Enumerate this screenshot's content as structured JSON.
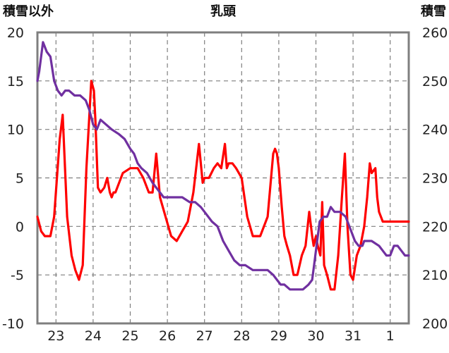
{
  "chart_data": {
    "type": "line",
    "title": "乳頭",
    "y_left_label": "積雪以外",
    "y_right_label": "積雪",
    "ylim_left": [
      -10,
      20
    ],
    "ylim_right": [
      200,
      260
    ],
    "x_ticks": [
      "23",
      "24",
      "25",
      "26",
      "27",
      "28",
      "29",
      "30",
      "31",
      "1"
    ],
    "x_tick_positions": [
      1,
      2,
      3,
      4,
      5,
      6,
      7,
      8,
      9,
      10
    ],
    "xlim": [
      0.5,
      10.5
    ],
    "y_ticks_left": [
      "20",
      "15",
      "10",
      "5",
      "0",
      "-5",
      "-10"
    ],
    "y_ticks_right": [
      "260",
      "250",
      "240",
      "230",
      "220",
      "210",
      "200"
    ],
    "grid": true,
    "series": [
      {
        "axis": "left",
        "color": "#ff0000",
        "x": [
          0.5,
          0.6,
          0.7,
          0.85,
          0.95,
          1.1,
          1.18,
          1.3,
          1.42,
          1.52,
          1.62,
          1.72,
          1.82,
          1.95,
          2.02,
          2.06,
          2.13,
          2.2,
          2.3,
          2.38,
          2.45,
          2.5,
          2.55,
          2.6,
          2.7,
          2.8,
          3.0,
          3.2,
          3.35,
          3.5,
          3.6,
          3.7,
          3.8,
          3.95,
          4.1,
          4.25,
          4.4,
          4.55,
          4.7,
          4.85,
          4.95,
          5.0,
          5.07,
          5.12,
          5.25,
          5.35,
          5.45,
          5.55,
          5.6,
          5.65,
          5.75,
          5.85,
          6.0,
          6.15,
          6.3,
          6.5,
          6.7,
          6.85,
          6.9,
          6.95,
          7.0,
          7.08,
          7.15,
          7.22,
          7.3,
          7.4,
          7.5,
          7.62,
          7.72,
          7.82,
          7.9,
          7.94,
          8.0,
          8.05,
          8.12,
          8.17,
          8.22,
          8.3,
          8.4,
          8.5,
          8.6,
          8.7,
          8.78,
          8.85,
          8.93,
          9.0,
          9.1,
          9.2,
          9.3,
          9.38,
          9.45,
          9.5,
          9.6,
          9.65,
          9.7,
          9.8,
          9.9,
          9.95,
          10.0,
          10.05,
          10.1,
          10.15,
          10.25,
          10.3,
          10.4,
          10.5
        ],
        "y": [
          1,
          -0.5,
          -1,
          -1,
          1,
          9,
          11.5,
          1,
          -3,
          -4.5,
          -5.5,
          -4,
          6,
          15,
          14,
          11,
          4,
          3.5,
          4,
          5,
          3.5,
          3,
          3.5,
          3.5,
          4.5,
          5.5,
          6,
          6,
          5,
          3.5,
          3.5,
          7.5,
          3,
          1,
          -1,
          -1.5,
          -0.5,
          0.5,
          3.5,
          8.5,
          4.5,
          5,
          5,
          5,
          6,
          6.5,
          6,
          8.5,
          6,
          6.5,
          6.5,
          6,
          5,
          1,
          -1,
          -1,
          1,
          7.5,
          8,
          7.5,
          6,
          2,
          -1,
          -2,
          -3,
          -5,
          -5,
          -3,
          -2,
          1.5,
          -1,
          -2,
          -1,
          -2,
          -3,
          2.5,
          -4,
          -5,
          -6.5,
          -6.5,
          -3,
          3,
          7.5,
          0,
          -5,
          -5.5,
          -3,
          -2,
          0,
          3,
          6.5,
          5.5,
          6,
          3,
          1.5,
          0.5,
          0.5,
          0.5,
          0.5,
          0.5,
          0.5,
          0.5,
          0.5,
          0.5,
          0.5,
          0.5
        ]
      },
      {
        "axis": "right",
        "color": "#7030a0",
        "x": [
          0.5,
          0.55,
          0.65,
          0.75,
          0.85,
          0.95,
          1.05,
          1.15,
          1.25,
          1.35,
          1.5,
          1.65,
          1.8,
          1.9,
          2.0,
          2.1,
          2.2,
          2.35,
          2.5,
          2.7,
          2.85,
          3.0,
          3.1,
          3.2,
          3.3,
          3.45,
          3.6,
          3.7,
          3.8,
          3.9,
          4.0,
          4.2,
          4.4,
          4.6,
          4.75,
          4.9,
          5.0,
          5.1,
          5.2,
          5.35,
          5.5,
          5.65,
          5.8,
          5.95,
          6.1,
          6.3,
          6.5,
          6.7,
          6.85,
          6.95,
          7.05,
          7.15,
          7.3,
          7.5,
          7.65,
          7.8,
          7.9,
          7.95,
          8.0,
          8.1,
          8.2,
          8.3,
          8.4,
          8.5,
          8.65,
          8.8,
          8.95,
          9.05,
          9.15,
          9.2,
          9.25,
          9.3,
          9.5,
          9.7,
          9.8,
          9.9,
          10.0,
          10.1,
          10.2,
          10.3,
          10.4,
          10.5
        ],
        "y": [
          250,
          252,
          258,
          256,
          255,
          250,
          248,
          247,
          248,
          248,
          247,
          247,
          246,
          244,
          241,
          240,
          242,
          241,
          240,
          239,
          238,
          236,
          235,
          233,
          232,
          231,
          229,
          228,
          227,
          226,
          226,
          226,
          226,
          225,
          225,
          224,
          223,
          222,
          221,
          220,
          217,
          215,
          213,
          212,
          212,
          211,
          211,
          211,
          210,
          209,
          208,
          208,
          207,
          207,
          207,
          208,
          209,
          212,
          215,
          221,
          222,
          222,
          224,
          223,
          223,
          222,
          219,
          217,
          216,
          216,
          216,
          217,
          217,
          216,
          215,
          214,
          214,
          216,
          216,
          215,
          214,
          214
        ]
      }
    ]
  }
}
